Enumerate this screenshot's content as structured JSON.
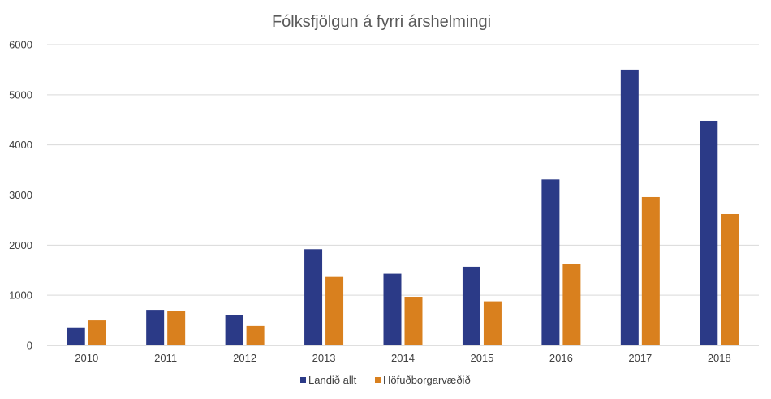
{
  "chart_data": {
    "type": "bar",
    "title": "Fólksfjölgun á fyrri árshelmingi",
    "categories": [
      "2010",
      "2011",
      "2012",
      "2013",
      "2014",
      "2015",
      "2016",
      "2017",
      "2018"
    ],
    "series": [
      {
        "name": "Landið allt",
        "color": "#2b3a87",
        "values": [
          360,
          710,
          600,
          1920,
          1430,
          1570,
          3310,
          5500,
          4480
        ]
      },
      {
        "name": "Höfuðborgarvæðið",
        "color": "#d9801e",
        "values": [
          500,
          680,
          390,
          1380,
          970,
          880,
          1620,
          2960,
          2620
        ]
      }
    ],
    "ylim": [
      0,
      6000
    ],
    "yticks": [
      0,
      1000,
      2000,
      3000,
      4000,
      5000,
      6000
    ],
    "grid": true,
    "legend": "bottom"
  }
}
